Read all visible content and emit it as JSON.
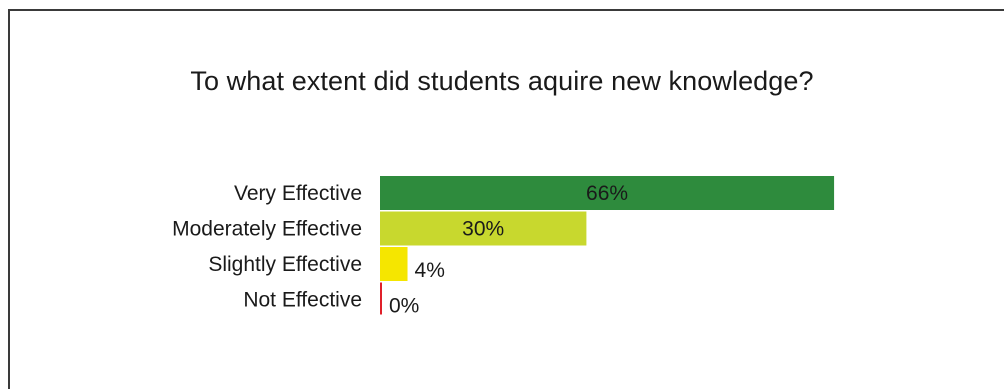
{
  "chart_data": {
    "type": "bar",
    "orientation": "horizontal",
    "title": "To what extent did students aquire new knowledge?",
    "categories": [
      "Very Effective",
      "Moderately Effective",
      "Slightly Effective",
      "Not Effective"
    ],
    "values": [
      66,
      30,
      4,
      0
    ],
    "value_labels": [
      "66%",
      "30%",
      "4%",
      "0%"
    ],
    "colors": [
      "#2e8b3d",
      "#c8d82e",
      "#f5e600",
      "#e0202a"
    ],
    "xlim": [
      0,
      100
    ],
    "xlabel": "",
    "ylabel": "",
    "grid": false,
    "legend": "none"
  }
}
